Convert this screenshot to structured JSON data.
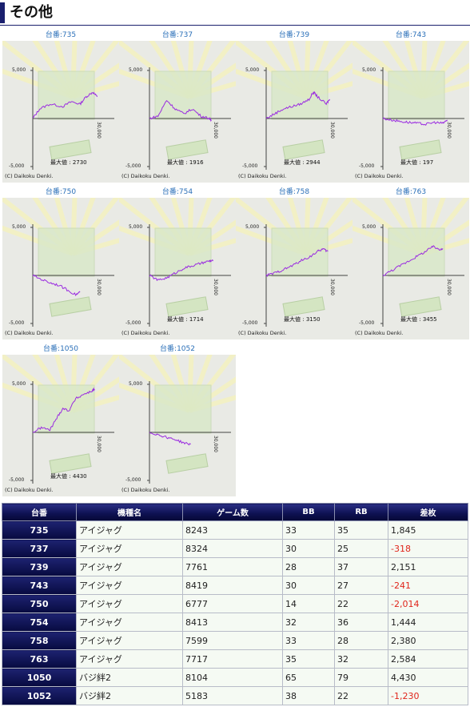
{
  "section": {
    "title": "その他"
  },
  "graph_common": {
    "y_top_label": "5,000",
    "y_bottom_label": "-5,000",
    "x_label": "30,000",
    "max_prefix": "最大値 : ",
    "copyright": "(C) Daikoku Denki."
  },
  "graphs": [
    {
      "label": "台番:735",
      "max": "2730"
    },
    {
      "label": "台番:737",
      "max": "1916"
    },
    {
      "label": "台番:739",
      "max": "2944"
    },
    {
      "label": "台番:743",
      "max": "197"
    },
    {
      "label": "台番:750",
      "max": ""
    },
    {
      "label": "台番:754",
      "max": "1714"
    },
    {
      "label": "台番:758",
      "max": "3150"
    },
    {
      "label": "台番:763",
      "max": "3455"
    },
    {
      "label": "台番:1050",
      "max": "4430"
    },
    {
      "label": "台番:1052",
      "max": ""
    }
  ],
  "table": {
    "headers": [
      "台番",
      "機種名",
      "ゲーム数",
      "BB",
      "RB",
      "差枚"
    ],
    "rows": [
      [
        "735",
        "アイジャグ",
        "8243",
        "33",
        "35",
        "1,845"
      ],
      [
        "737",
        "アイジャグ",
        "8324",
        "30",
        "25",
        "-318"
      ],
      [
        "739",
        "アイジャグ",
        "7761",
        "28",
        "37",
        "2,151"
      ],
      [
        "743",
        "アイジャグ",
        "8419",
        "30",
        "27",
        "-241"
      ],
      [
        "750",
        "アイジャグ",
        "6777",
        "14",
        "22",
        "-2,014"
      ],
      [
        "754",
        "アイジャグ",
        "8413",
        "32",
        "36",
        "1,444"
      ],
      [
        "758",
        "アイジャグ",
        "7599",
        "33",
        "28",
        "2,380"
      ],
      [
        "763",
        "アイジャグ",
        "7717",
        "35",
        "32",
        "2,584"
      ],
      [
        "1050",
        "バジ絆2",
        "8104",
        "65",
        "79",
        "4,430"
      ],
      [
        "1052",
        "バジ絆2",
        "5183",
        "38",
        "22",
        "-1,230"
      ]
    ]
  },
  "colors": {
    "line": "#9a2be0",
    "header_bg": "#0d1050",
    "negative": "#e0251b",
    "link": "#2a6fb8"
  }
}
